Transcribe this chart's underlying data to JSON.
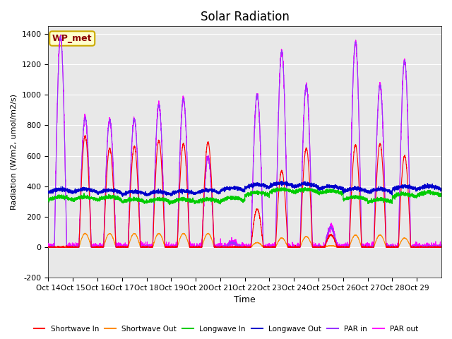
{
  "title": "Solar Radiation",
  "xlabel": "Time",
  "ylabel": "Radiation (W/m2, umol/m2/s)",
  "ylim": [
    -200,
    1450
  ],
  "yticks": [
    -200,
    0,
    200,
    400,
    600,
    800,
    1000,
    1200,
    1400
  ],
  "xtick_labels": [
    "Oct 14",
    "Oct 15",
    "Oct 16",
    "Oct 17",
    "Oct 18",
    "Oct 19",
    "Oct 20",
    "Oct 21",
    "Oct 22",
    "Oct 23",
    "Oct 24",
    "Oct 25",
    "Oct 26",
    "Oct 27",
    "Oct 28",
    "Oct 29"
  ],
  "legend_entries": [
    "Shortwave In",
    "Shortwave Out",
    "Longwave In",
    "Longwave Out",
    "PAR in",
    "PAR out"
  ],
  "legend_colors": [
    "#ff0000",
    "#ff8c00",
    "#00cc00",
    "#0000cc",
    "#9933ff",
    "#ff00ff"
  ],
  "annotation_text": "WP_met",
  "background_color": "#e8e8e8",
  "n_days": 16,
  "shortwave_in_peaks": [
    0,
    730,
    650,
    660,
    700,
    680,
    690,
    0,
    250,
    500,
    650,
    80,
    670,
    680,
    600,
    0
  ],
  "shortwave_out_peaks": [
    0,
    90,
    90,
    90,
    90,
    90,
    90,
    0,
    30,
    60,
    70,
    10,
    80,
    80,
    60,
    0
  ],
  "par_in_peaks": [
    1380,
    850,
    835,
    840,
    935,
    975,
    590,
    30,
    1000,
    1285,
    1060,
    130,
    1345,
    1065,
    1225,
    0
  ],
  "lw_in_base": [
    310,
    310,
    310,
    295,
    295,
    295,
    295,
    305,
    340,
    360,
    360,
    350,
    310,
    295,
    330,
    340
  ],
  "lw_out_base": [
    360,
    360,
    355,
    345,
    345,
    350,
    355,
    370,
    390,
    400,
    395,
    380,
    365,
    360,
    380,
    380
  ]
}
